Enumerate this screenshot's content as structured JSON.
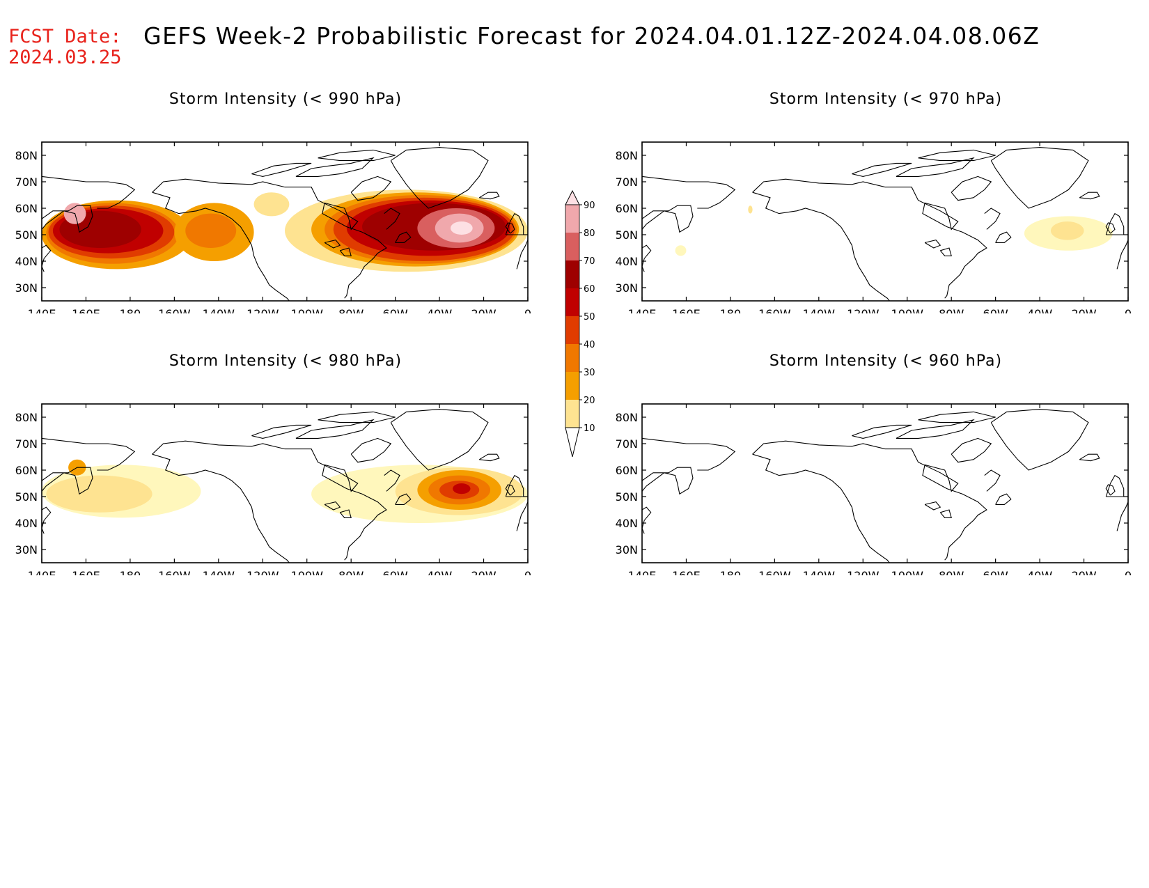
{
  "header": {
    "fcst_label": "FCST Date:",
    "fcst_date": "2024.03.25",
    "title": "GEFS Week-2 Probabilistic Forecast for 2024.04.01.12Z-2024.04.08.06Z"
  },
  "axes": {
    "lon_ticks": [
      "140E",
      "160E",
      "180",
      "160W",
      "140W",
      "120W",
      "100W",
      "80W",
      "60W",
      "40W",
      "20W",
      "0"
    ],
    "lat_ticks": [
      "80N",
      "70N",
      "60N",
      "50N",
      "40N",
      "30N"
    ]
  },
  "colorbar": {
    "levels": [
      "10",
      "20",
      "30",
      "40",
      "50",
      "60",
      "70",
      "80",
      "90"
    ],
    "colors": [
      "#fff7bc",
      "#fee391",
      "#f59f00",
      "#f07800",
      "#e03c00",
      "#c00000",
      "#9e0000",
      "#d95f5f",
      "#f0a8ac",
      "#fde0e4"
    ]
  },
  "panels": [
    {
      "id": "p990",
      "title": "Storm Intensity (< 990 hPa)",
      "threshold_hPa": 990,
      "intensity": "high"
    },
    {
      "id": "p970",
      "title": "Storm Intensity (< 970 hPa)",
      "threshold_hPa": 970,
      "intensity": "low"
    },
    {
      "id": "p980",
      "title": "Storm Intensity (< 980 hPa)",
      "threshold_hPa": 980,
      "intensity": "medium"
    },
    {
      "id": "p960",
      "title": "Storm Intensity (< 960 hPa)",
      "threshold_hPa": 960,
      "intensity": "none"
    }
  ]
}
